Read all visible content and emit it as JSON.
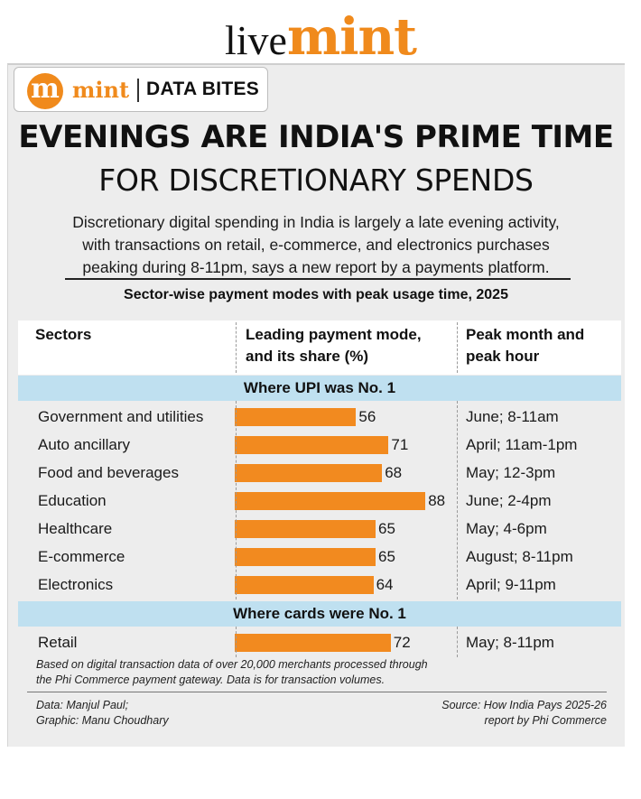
{
  "masthead": {
    "live": "live",
    "mint": "mint"
  },
  "badge": {
    "logo_letter": "m",
    "brand": "mint",
    "section": "DATA BITES"
  },
  "title": {
    "line1": "EVENINGS ARE INDIA'S PRIME TIME",
    "line2": "FOR DISCRETIONARY SPENDS"
  },
  "description": {
    "line1": "Discretionary digital spending in India is largely a late evening activity,",
    "line2": "with transactions on retail, e-commerce, and electronics purchases",
    "line3": "peaking during 8-11pm, says a new report by a payments platform."
  },
  "colors": {
    "bar": "#f28a1f",
    "band": "#bfe0f0",
    "brand": "#f08a1c"
  },
  "chart_data": {
    "type": "table",
    "subtitle": "Sector-wise payment modes with peak usage time, 2025",
    "columns": {
      "sectors": "Sectors",
      "mode_line1": "Leading payment mode,",
      "mode_line2": "and its share (%)",
      "peak_line1": "Peak month and",
      "peak_line2": "peak hour"
    },
    "groups": [
      {
        "heading": "Where UPI was No. 1",
        "rows": [
          {
            "sector": "Government and utilities",
            "share": 56,
            "peak": "June; 8-11am"
          },
          {
            "sector": "Auto ancillary",
            "share": 71,
            "peak": "April; 11am-1pm"
          },
          {
            "sector": "Food and beverages",
            "share": 68,
            "peak": "May; 12-3pm"
          },
          {
            "sector": "Education",
            "share": 88,
            "peak": "June; 2-4pm"
          },
          {
            "sector": "Healthcare",
            "share": 65,
            "peak": "May; 4-6pm"
          },
          {
            "sector": "E-commerce",
            "share": 65,
            "peak": "August; 8-11pm"
          },
          {
            "sector": "Electronics",
            "share": 64,
            "peak": "April; 9-11pm"
          }
        ]
      },
      {
        "heading": "Where cards were No. 1",
        "rows": [
          {
            "sector": "Retail",
            "share": 72,
            "peak": "May; 8-11pm"
          }
        ]
      }
    ]
  },
  "footnote": {
    "line1": "Based on digital transaction data of over 20,000 merchants processed through",
    "line2": "the Phi Commerce payment gateway. Data is for transaction volumes."
  },
  "credits": {
    "data": "Data: Manjul Paul;",
    "graphic": "Graphic: Manu Choudhary",
    "source_line1": "Source: How India Pays 2025-26",
    "source_line2": "report by Phi Commerce"
  }
}
